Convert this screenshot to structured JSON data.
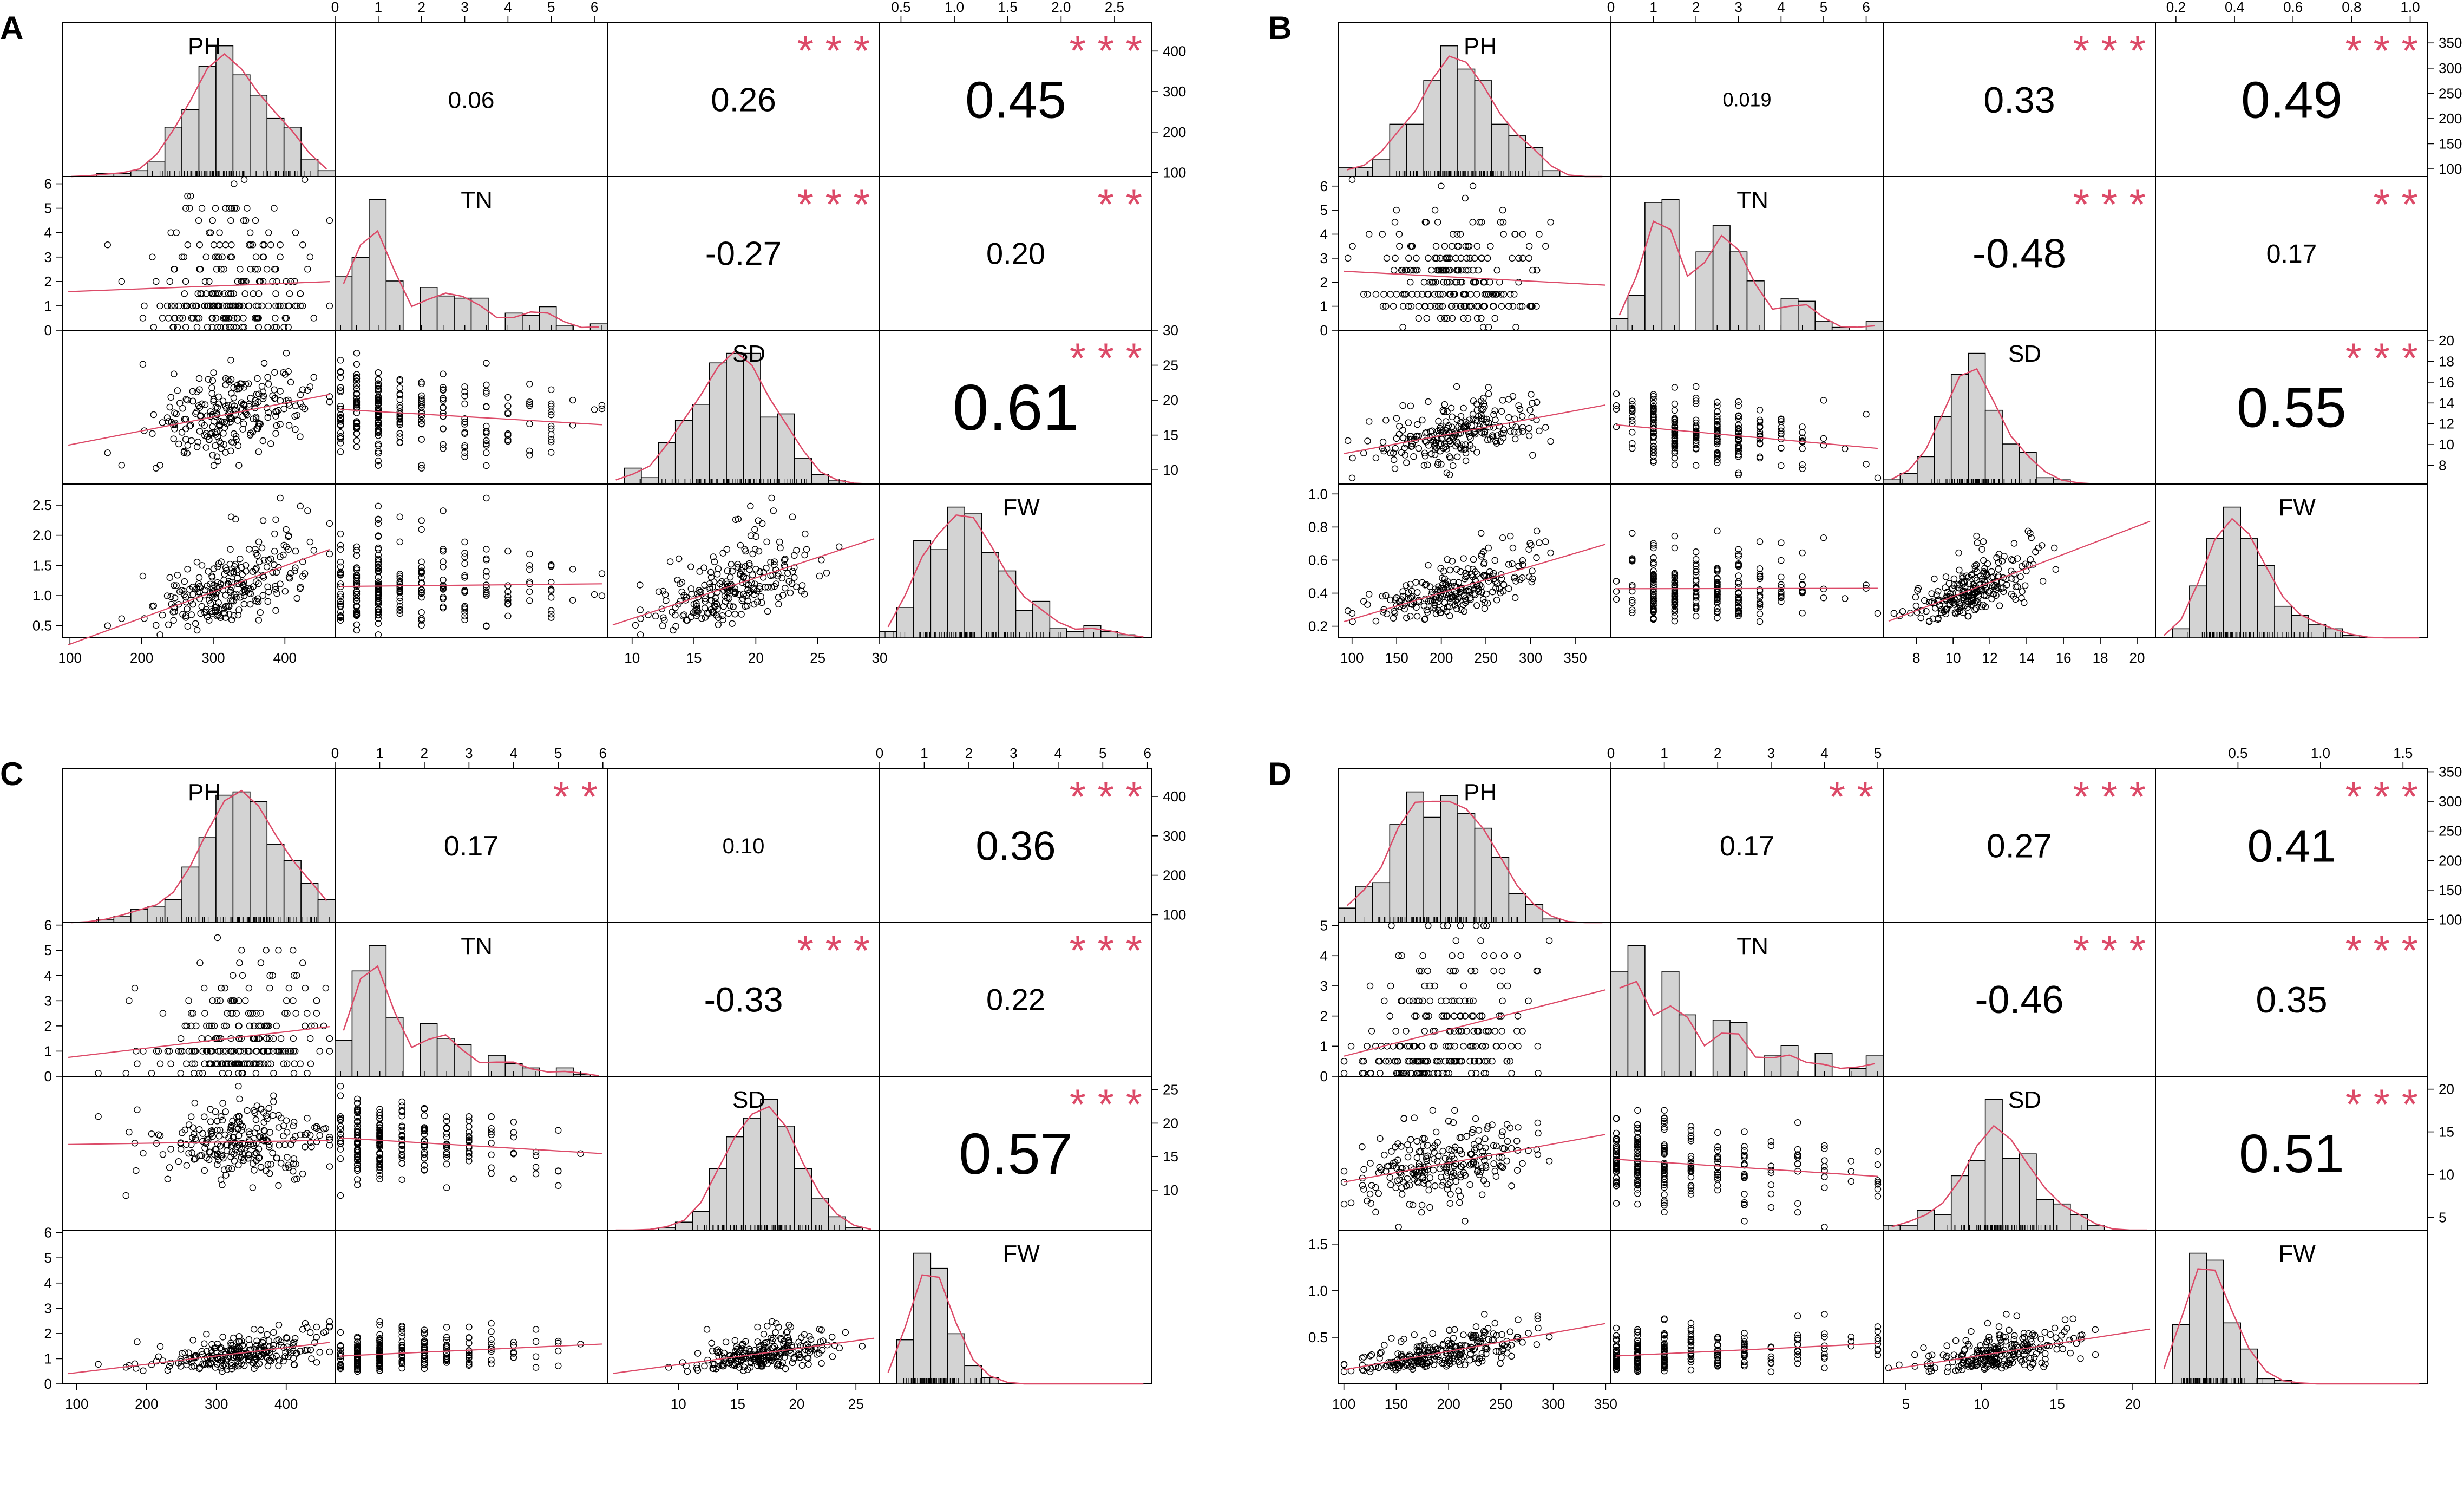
{
  "figure": {
    "description_free": true,
    "variables": [
      "PH",
      "TN",
      "SD",
      "FW"
    ],
    "accent_color": "#dc4a68",
    "histogram_fill": "#d3d3d3",
    "axis_color": "#000000"
  },
  "chart_data": [
    {
      "panel_label": "A",
      "type": "scatter",
      "variables": [
        "PH",
        "TN",
        "SD",
        "FW"
      ],
      "ranges": [
        [
          90,
          470
        ],
        [
          0,
          6.3
        ],
        [
          8,
          30
        ],
        [
          0.3,
          2.85
        ]
      ],
      "ticks": [
        {
          "values": [
            100,
            200,
            300,
            400
          ],
          "labels": [
            "100",
            "200",
            "300",
            "400"
          ]
        },
        {
          "values": [
            0,
            1,
            2,
            3,
            4,
            5,
            6
          ],
          "labels": [
            "0",
            "1",
            "2",
            "3",
            "4",
            "5",
            "6"
          ]
        },
        {
          "values": [
            10,
            15,
            20,
            25,
            30
          ],
          "labels": [
            "10",
            "15",
            "20",
            "25",
            "30"
          ]
        },
        {
          "values": [
            0.5,
            1.0,
            1.5,
            2.0,
            2.5
          ],
          "labels": [
            "0.5",
            "1.0",
            "1.5",
            "2.0",
            "2.5"
          ]
        }
      ],
      "means": [
        320,
        1.3,
        18,
        1.05
      ],
      "sds": [
        55,
        1.2,
        3.8,
        0.5
      ],
      "skew": [
        false,
        true,
        false,
        true
      ],
      "correlations": [
        {
          "row": 0,
          "col": 1,
          "value": "0.06",
          "stars": "",
          "size": 44
        },
        {
          "row": 0,
          "col": 2,
          "value": "0.26",
          "stars": "***",
          "size": 62
        },
        {
          "row": 0,
          "col": 3,
          "value": "0.45",
          "stars": "***",
          "size": 96
        },
        {
          "row": 1,
          "col": 2,
          "value": "-0.27",
          "stars": "***",
          "size": 62
        },
        {
          "row": 1,
          "col": 3,
          "value": "0.20",
          "stars": "**",
          "size": 56
        },
        {
          "row": 2,
          "col": 3,
          "value": "0.61",
          "stars": "***",
          "size": 120
        }
      ]
    },
    {
      "panel_label": "B",
      "type": "scatter",
      "variables": [
        "PH",
        "TN",
        "SD",
        "FW"
      ],
      "ranges": [
        [
          85,
          390
        ],
        [
          0,
          6.4
        ],
        [
          6.2,
          21
        ],
        [
          0.13,
          1.06
        ]
      ],
      "ticks": [
        {
          "values": [
            100,
            150,
            200,
            250,
            300,
            350
          ],
          "labels": [
            "100",
            "150",
            "200",
            "250",
            "300",
            "350"
          ]
        },
        {
          "values": [
            0,
            1,
            2,
            3,
            4,
            5,
            6
          ],
          "labels": [
            "0",
            "1",
            "2",
            "3",
            "4",
            "5",
            "6"
          ]
        },
        {
          "values": [
            8,
            10,
            12,
            14,
            16,
            18,
            20
          ],
          "labels": [
            "8",
            "10",
            "12",
            "14",
            "16",
            "18",
            "20"
          ]
        },
        {
          "values": [
            0.2,
            0.4,
            0.6,
            0.8,
            1.0
          ],
          "labels": [
            "0.2",
            "0.4",
            "0.6",
            "0.8",
            "1.0"
          ]
        }
      ],
      "means": [
        215,
        1.7,
        11.2,
        0.42
      ],
      "sds": [
        45,
        1.2,
        1.8,
        0.14
      ],
      "skew": [
        false,
        true,
        false,
        true
      ],
      "correlations": [
        {
          "row": 0,
          "col": 1,
          "value": "0.019",
          "stars": "",
          "size": 36
        },
        {
          "row": 0,
          "col": 2,
          "value": "0.33",
          "stars": "***",
          "size": 68
        },
        {
          "row": 0,
          "col": 3,
          "value": "0.49",
          "stars": "***",
          "size": 96
        },
        {
          "row": 1,
          "col": 2,
          "value": "-0.48",
          "stars": "***",
          "size": 76
        },
        {
          "row": 1,
          "col": 3,
          "value": "0.17",
          "stars": "**",
          "size": 48
        },
        {
          "row": 2,
          "col": 3,
          "value": "0.55",
          "stars": "***",
          "size": 104
        }
      ]
    },
    {
      "panel_label": "C",
      "type": "scatter",
      "variables": [
        "PH",
        "TN",
        "SD",
        "FW"
      ],
      "ranges": [
        [
          80,
          470
        ],
        [
          0,
          6.1
        ],
        [
          4,
          27
        ],
        [
          0,
          6.1
        ]
      ],
      "ticks": [
        {
          "values": [
            100,
            200,
            300,
            400
          ],
          "labels": [
            "100",
            "200",
            "300",
            "400"
          ]
        },
        {
          "values": [
            0,
            1,
            2,
            3,
            4,
            5,
            6
          ],
          "labels": [
            "0",
            "1",
            "2",
            "3",
            "4",
            "5",
            "6"
          ]
        },
        {
          "values": [
            10,
            15,
            20,
            25
          ],
          "labels": [
            "10",
            "15",
            "20",
            "25"
          ]
        },
        {
          "values": [
            0,
            1,
            2,
            3,
            4,
            5,
            6
          ],
          "labels": [
            "0",
            "1",
            "2",
            "3",
            "4",
            "5",
            "6"
          ]
        }
      ],
      "means": [
        330,
        1.2,
        17,
        1.1
      ],
      "sds": [
        60,
        1.1,
        3.2,
        0.5
      ],
      "skew": [
        false,
        true,
        false,
        true
      ],
      "correlations": [
        {
          "row": 0,
          "col": 1,
          "value": "0.17",
          "stars": "**",
          "size": 52
        },
        {
          "row": 0,
          "col": 2,
          "value": "0.10",
          "stars": "",
          "size": 40
        },
        {
          "row": 0,
          "col": 3,
          "value": "0.36",
          "stars": "***",
          "size": 76
        },
        {
          "row": 1,
          "col": 2,
          "value": "-0.33",
          "stars": "***",
          "size": 64
        },
        {
          "row": 1,
          "col": 3,
          "value": "0.22",
          "stars": "***",
          "size": 56
        },
        {
          "row": 2,
          "col": 3,
          "value": "0.57",
          "stars": "***",
          "size": 108
        }
      ]
    },
    {
      "panel_label": "D",
      "type": "scatter",
      "variables": [
        "PH",
        "TN",
        "SD",
        "FW"
      ],
      "ranges": [
        [
          95,
          355
        ],
        [
          0,
          5.1
        ],
        [
          3.5,
          21.5
        ],
        [
          0,
          1.65
        ]
      ],
      "ticks": [
        {
          "values": [
            100,
            150,
            200,
            250,
            300,
            350
          ],
          "labels": [
            "100",
            "150",
            "200",
            "250",
            "300",
            "350"
          ]
        },
        {
          "values": [
            0,
            1,
            2,
            3,
            4,
            5
          ],
          "labels": [
            "0",
            "1",
            "2",
            "3",
            "4",
            "5"
          ]
        },
        {
          "values": [
            5,
            10,
            15,
            20
          ],
          "labels": [
            "5",
            "10",
            "15",
            "20"
          ]
        },
        {
          "values": [
            0.5,
            1.0,
            1.5
          ],
          "labels": [
            "0.5",
            "1.0",
            "1.5"
          ]
        }
      ],
      "means": [
        195,
        1.0,
        11.5,
        0.33
      ],
      "sds": [
        40,
        1.1,
        2.8,
        0.15
      ],
      "skew": [
        false,
        true,
        false,
        true
      ],
      "correlations": [
        {
          "row": 0,
          "col": 1,
          "value": "0.17",
          "stars": "**",
          "size": 52
        },
        {
          "row": 0,
          "col": 2,
          "value": "0.27",
          "stars": "***",
          "size": 62
        },
        {
          "row": 0,
          "col": 3,
          "value": "0.41",
          "stars": "***",
          "size": 84
        },
        {
          "row": 1,
          "col": 2,
          "value": "-0.46",
          "stars": "***",
          "size": 72
        },
        {
          "row": 1,
          "col": 3,
          "value": "0.35",
          "stars": "***",
          "size": 68
        },
        {
          "row": 2,
          "col": 3,
          "value": "0.51",
          "stars": "***",
          "size": 100
        }
      ]
    }
  ]
}
